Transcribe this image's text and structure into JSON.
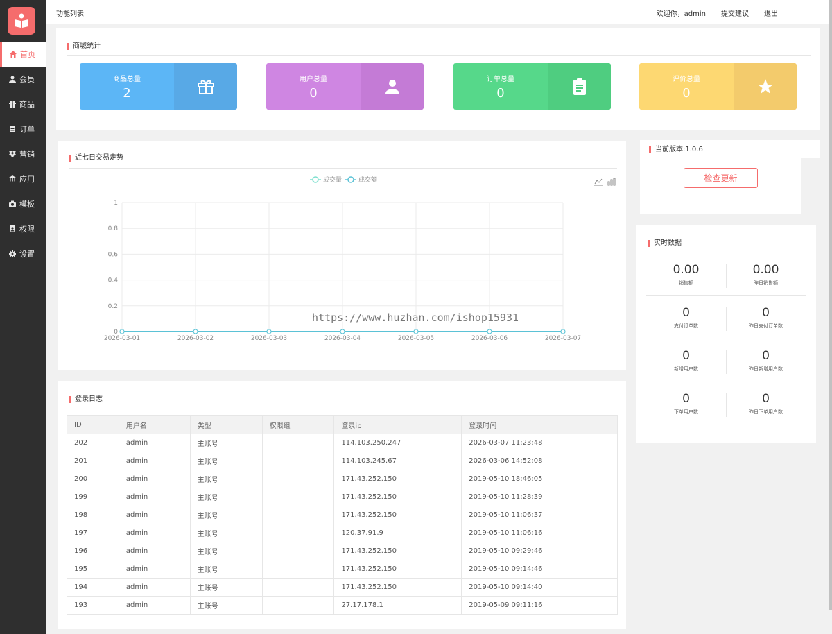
{
  "topbar": {
    "title": "功能列表",
    "welcome": "欢迎你，admin",
    "feedback": "提交建议",
    "logout": "退出"
  },
  "sidebar": {
    "items": [
      {
        "label": "首页",
        "icon": "home-icon",
        "active": true
      },
      {
        "label": "会员",
        "icon": "user-icon"
      },
      {
        "label": "商品",
        "icon": "gift-icon"
      },
      {
        "label": "订单",
        "icon": "clipboard-icon"
      },
      {
        "label": "营销",
        "icon": "dropbox-icon"
      },
      {
        "label": "应用",
        "icon": "bank-icon"
      },
      {
        "label": "模板",
        "icon": "camera-icon"
      },
      {
        "label": "权限",
        "icon": "id-card-icon"
      },
      {
        "label": "设置",
        "icon": "gear-icon"
      }
    ]
  },
  "stats": {
    "title": "商城统计",
    "cards": [
      {
        "label": "商品总量",
        "value": "2",
        "icon": "gift-icon",
        "color_left": "#5cb6f6",
        "color_right": "#58a9e6"
      },
      {
        "label": "用户总量",
        "value": "0",
        "icon": "user-icon",
        "color_left": "#cf86e2",
        "color_right": "#c47bd6"
      },
      {
        "label": "订单总量",
        "value": "0",
        "icon": "clipboard-icon",
        "color_left": "#56d88a",
        "color_right": "#4fcd80"
      },
      {
        "label": "评价总量",
        "value": "0",
        "icon": "star-icon",
        "color_left": "#fdd872",
        "color_right": "#f3cb6c"
      }
    ]
  },
  "trend": {
    "title": "近七日交易走势",
    "watermark": "https://www.huzhan.com/ishop15931"
  },
  "chart_data": {
    "type": "line",
    "x": [
      "2026-03-01",
      "2026-03-02",
      "2026-03-03",
      "2026-03-04",
      "2026-03-05",
      "2026-03-06",
      "2026-03-07"
    ],
    "series": [
      {
        "name": "成交量",
        "values": [
          0,
          0,
          0,
          0,
          0,
          0,
          0
        ],
        "color": "#7ee0cf"
      },
      {
        "name": "成交额",
        "values": [
          0,
          0,
          0,
          0,
          0,
          0,
          0
        ],
        "color": "#5bc2d6"
      }
    ],
    "ylim": [
      0,
      1
    ],
    "yticks": [
      "0",
      "0.2",
      "0.4",
      "0.6",
      "0.8",
      "1"
    ],
    "grid": true,
    "legend": "top-center"
  },
  "version": {
    "label": "当前版本:1.0.6",
    "button": "检查更新"
  },
  "realtime": {
    "title": "实时数据",
    "cells": [
      {
        "value": "0.00",
        "caption": "销售额"
      },
      {
        "value": "0.00",
        "caption": "昨日销售额"
      },
      {
        "value": "0",
        "caption": "支付订单数"
      },
      {
        "value": "0",
        "caption": "昨日支付订单数"
      },
      {
        "value": "0",
        "caption": "新增用户数"
      },
      {
        "value": "0",
        "caption": "昨日新增用户数"
      },
      {
        "value": "0",
        "caption": "下单用户数"
      },
      {
        "value": "0",
        "caption": "昨日下单用户数"
      }
    ]
  },
  "login_log": {
    "title": "登录日志",
    "columns": [
      "ID",
      "用户名",
      "类型",
      "权限组",
      "登录ip",
      "登录时间"
    ],
    "rows": [
      [
        "202",
        "admin",
        "主账号",
        "",
        "114.103.250.247",
        "2026-03-07 11:23:48"
      ],
      [
        "201",
        "admin",
        "主账号",
        "",
        "114.103.245.67",
        "2026-03-06 14:52:08"
      ],
      [
        "200",
        "admin",
        "主账号",
        "",
        "171.43.252.150",
        "2019-05-10 18:46:05"
      ],
      [
        "199",
        "admin",
        "主账号",
        "",
        "171.43.252.150",
        "2019-05-10 11:28:39"
      ],
      [
        "198",
        "admin",
        "主账号",
        "",
        "171.43.252.150",
        "2019-05-10 11:06:37"
      ],
      [
        "197",
        "admin",
        "主账号",
        "",
        "120.37.91.9",
        "2019-05-10 11:06:16"
      ],
      [
        "196",
        "admin",
        "主账号",
        "",
        "171.43.252.150",
        "2019-05-10 09:29:46"
      ],
      [
        "195",
        "admin",
        "主账号",
        "",
        "171.43.252.150",
        "2019-05-10 09:14:46"
      ],
      [
        "194",
        "admin",
        "主账号",
        "",
        "171.43.252.150",
        "2019-05-10 09:14:40"
      ],
      [
        "193",
        "admin",
        "主账号",
        "",
        "27.17.178.1",
        "2019-05-09 09:11:16"
      ]
    ]
  }
}
